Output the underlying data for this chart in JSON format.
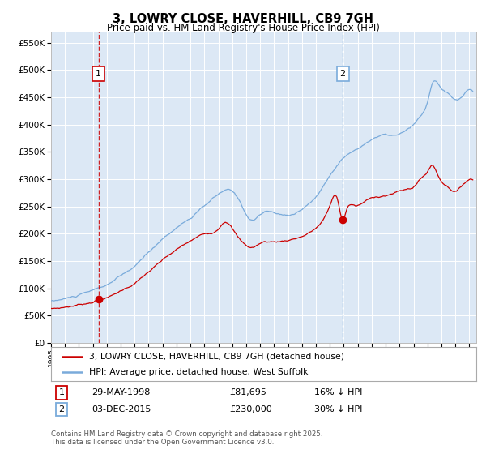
{
  "title": "3, LOWRY CLOSE, HAVERHILL, CB9 7GH",
  "subtitle": "Price paid vs. HM Land Registry's House Price Index (HPI)",
  "sale1_date": "29-MAY-1998",
  "sale1_price": 81695,
  "sale1_label": "16% ↓ HPI",
  "sale2_date": "03-DEC-2015",
  "sale2_price": 230000,
  "sale2_label": "30% ↓ HPI",
  "legend_property": "3, LOWRY CLOSE, HAVERHILL, CB9 7GH (detached house)",
  "legend_hpi": "HPI: Average price, detached house, West Suffolk",
  "footnote": "Contains HM Land Registry data © Crown copyright and database right 2025.\nThis data is licensed under the Open Government Licence v3.0.",
  "property_color": "#cc0000",
  "hpi_color": "#7aabdb",
  "vline1_color": "#cc0000",
  "vline2_color": "#7aabdb",
  "bg_color": "#dce8f5",
  "grid_color": "#ffffff",
  "ylim": [
    0,
    570000
  ],
  "yticks": [
    0,
    50000,
    100000,
    150000,
    200000,
    250000,
    300000,
    350000,
    400000,
    450000,
    500000,
    550000
  ],
  "sale1_year": 1998.41,
  "sale2_year": 2015.92,
  "xlim_start": 1995.0,
  "xlim_end": 2025.5
}
